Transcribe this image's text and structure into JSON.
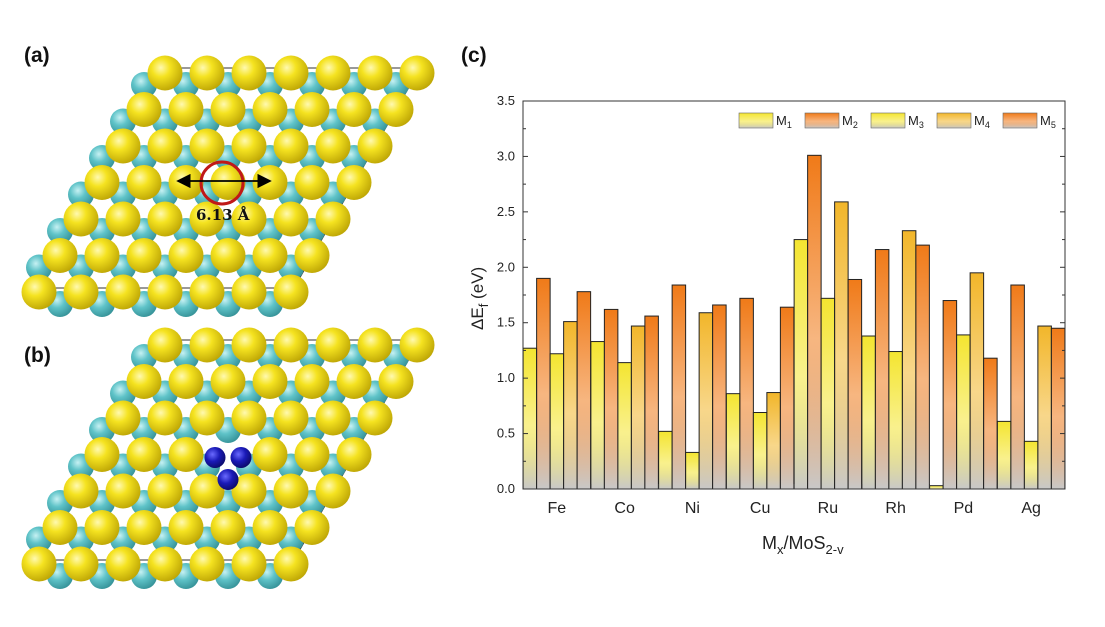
{
  "panel_labels": {
    "a": "(a)",
    "b": "(b)",
    "c": "(c)"
  },
  "panel_a": {
    "distance_label": "6.13 Å"
  },
  "colors": {
    "sulfur": "#f0da10",
    "molybdenum": "#5fc3c8",
    "metal": "#1a1ab8",
    "circle": "#c01818",
    "bar_top_yellow": "#f4e530",
    "bar_top_orange": "#f07a18",
    "bar_top_gold": "#f2b62a",
    "bar_bottom": "#c8c8c8"
  },
  "chart_data": {
    "type": "bar",
    "title": "",
    "xlabel": "M",
    "xlabel_sub": "x",
    "xlabel_rest": "/MoS",
    "xlabel_sub2": "2-v",
    "ylabel": "ΔE",
    "ylabel_sub": "f",
    "ylabel_unit": " (eV)",
    "ylim": [
      0,
      3.5
    ],
    "yticks": [
      "0.0",
      "0.5",
      "1.0",
      "1.5",
      "2.0",
      "2.5",
      "3.0",
      "3.5"
    ],
    "categories": [
      "Fe",
      "Co",
      "Ni",
      "Cu",
      "Ru",
      "Rh",
      "Pd",
      "Ag"
    ],
    "legend_position": "top-right",
    "series": [
      {
        "name": "M",
        "sub": "1",
        "color_key": "bar_top_yellow",
        "values": [
          1.27,
          1.33,
          0.52,
          0.86,
          2.25,
          1.38,
          0.03,
          0.61
        ]
      },
      {
        "name": "M",
        "sub": "2",
        "color_key": "bar_top_orange",
        "values": [
          1.9,
          1.62,
          1.84,
          1.72,
          3.01,
          2.16,
          1.7,
          1.84
        ]
      },
      {
        "name": "M",
        "sub": "3",
        "color_key": "bar_top_yellow",
        "values": [
          1.22,
          1.14,
          0.33,
          0.69,
          1.72,
          1.24,
          1.39,
          0.43
        ]
      },
      {
        "name": "M",
        "sub": "4",
        "color_key": "bar_top_gold",
        "values": [
          1.51,
          1.47,
          1.59,
          0.87,
          2.59,
          2.33,
          1.95,
          1.47
        ]
      },
      {
        "name": "M",
        "sub": "5",
        "color_key": "bar_top_orange",
        "values": [
          1.78,
          1.56,
          1.66,
          1.64,
          1.89,
          2.2,
          1.18,
          1.45
        ]
      }
    ]
  }
}
